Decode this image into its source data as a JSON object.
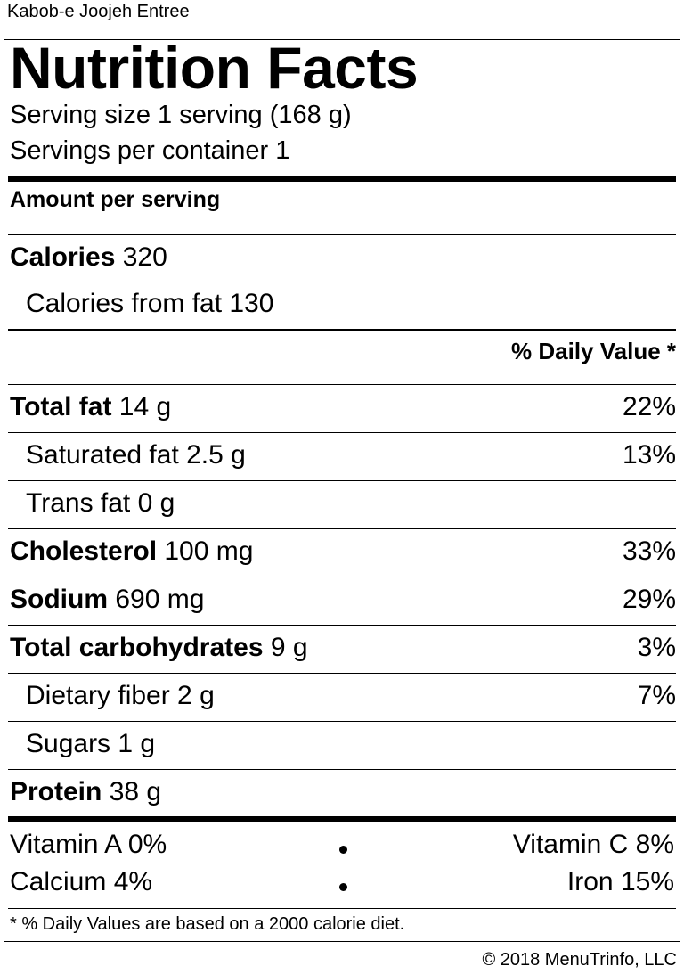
{
  "caption": "Kabob-e Joojeh Entree",
  "title": "Nutrition Facts",
  "serving_size": "Serving size 1 serving (168 g)",
  "servings_per_container": "Servings per container 1",
  "amount_per_serving": "Amount per serving",
  "calories": {
    "label": "Calories",
    "value": "320"
  },
  "calories_from_fat": "Calories from fat 130",
  "daily_value_header": "% Daily Value *",
  "nutrients": [
    {
      "label": "Total fat",
      "amount": "14 g",
      "dv": "22%"
    },
    {
      "label": "Saturated fat 2.5 g",
      "dv": "13%"
    },
    {
      "label": "Trans fat 0 g",
      "dv": ""
    },
    {
      "label": "Cholesterol",
      "amount": "100 mg",
      "dv": "33%"
    },
    {
      "label": "Sodium",
      "amount": "690 mg",
      "dv": "29%"
    },
    {
      "label": "Total carbohydrates",
      "amount": "9 g",
      "dv": "3%"
    },
    {
      "label": "Dietary fiber 2 g",
      "dv": "7%"
    },
    {
      "label": "Sugars 1 g",
      "dv": ""
    },
    {
      "label": "Protein",
      "amount": "38 g",
      "dv": ""
    }
  ],
  "vitamins": {
    "vitamin_a": "Vitamin A 0%",
    "vitamin_c": "Vitamin C 8%",
    "calcium": "Calcium 4%",
    "iron": "Iron 15%"
  },
  "footnote": "* % Daily Values are based on a 2000 calorie diet.",
  "copyright": "© 2018 MenuTrinfo, LLC"
}
